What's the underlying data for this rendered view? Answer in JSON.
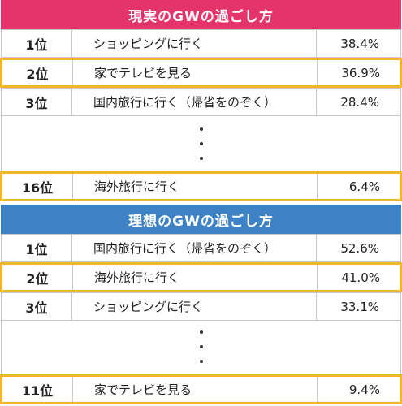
{
  "chart_data": [
    {
      "type": "table",
      "title": "現実のGWの過ごし方",
      "header_color": "#e5336b",
      "highlight_color": "#f0b528",
      "rows": [
        {
          "rank": "1位",
          "label": "ショッピングに行く",
          "value": "38.4%",
          "highlight": false
        },
        {
          "rank": "2位",
          "label": "家でテレビを見る",
          "value": "36.9%",
          "highlight": true
        },
        {
          "rank": "3位",
          "label": "国内旅行に行く（帰省をのぞく）",
          "value": "28.4%",
          "highlight": false
        },
        {
          "rank": "16位",
          "label": "海外旅行に行く",
          "value": "6.4%",
          "highlight": true
        }
      ]
    },
    {
      "type": "table",
      "title": "理想のGWの過ごし方",
      "header_color": "#3d82c4",
      "highlight_color": "#f0b528",
      "rows": [
        {
          "rank": "1位",
          "label": "国内旅行に行く（帰省をのぞく）",
          "value": "52.6%",
          "highlight": false
        },
        {
          "rank": "2位",
          "label": "海外旅行に行く",
          "value": "41.0%",
          "highlight": true
        },
        {
          "rank": "3位",
          "label": "ショッピングに行く",
          "value": "33.1%",
          "highlight": false
        },
        {
          "rank": "11位",
          "label": "家でテレビを見る",
          "value": "9.4%",
          "highlight": true
        }
      ]
    }
  ]
}
